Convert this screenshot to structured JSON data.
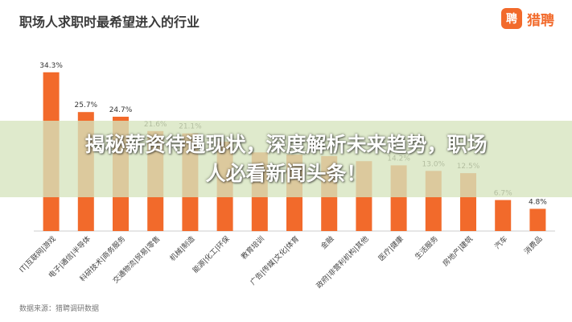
{
  "header": {
    "title": "职场人求职时最希望进入的行业",
    "brand_text": "猎聘",
    "brand_icon_glyph": "聘"
  },
  "source_note": "数据来源：猎聘调研数据",
  "overlay": {
    "headline_line1": "揭秘薪资待遇现状，深度解析未来趋势，职场",
    "headline_line2": "人必看新闻头条！"
  },
  "colors": {
    "bar": "#f26a2b",
    "axis": "#cccccc",
    "banner": "#d6e4be"
  },
  "chart_data": {
    "type": "bar",
    "title": "职场人求职时最希望进入的行业",
    "categories": [
      "IT|互联网|游戏",
      "电子|通信|半导体",
      "科研技术|商务服务",
      "交通物流|贸易|零售",
      "机械|制造",
      "能源|化工|环保",
      "教育培训",
      "广告|传媒|文化|体育",
      "金融",
      "政府|非营利机构|其他",
      "医疗|健康",
      "生活服务",
      "房地产|建筑",
      "汽车",
      "消费品"
    ],
    "values": [
      34.3,
      25.7,
      24.7,
      21.6,
      21.1,
      19.3,
      17.0,
      16.5,
      16.2,
      15.1,
      14.2,
      13.0,
      12.5,
      6.7,
      4.8
    ],
    "value_labels": [
      "34.3%",
      "25.7%",
      "24.7%",
      "21.6%",
      "21.1%",
      "",
      "",
      "",
      "",
      "",
      "14.2%",
      "13.0%",
      "12.5%",
      "6.7%",
      "4.8%"
    ],
    "ylim": [
      0,
      36
    ],
    "xlabel": "",
    "ylabel": ""
  }
}
